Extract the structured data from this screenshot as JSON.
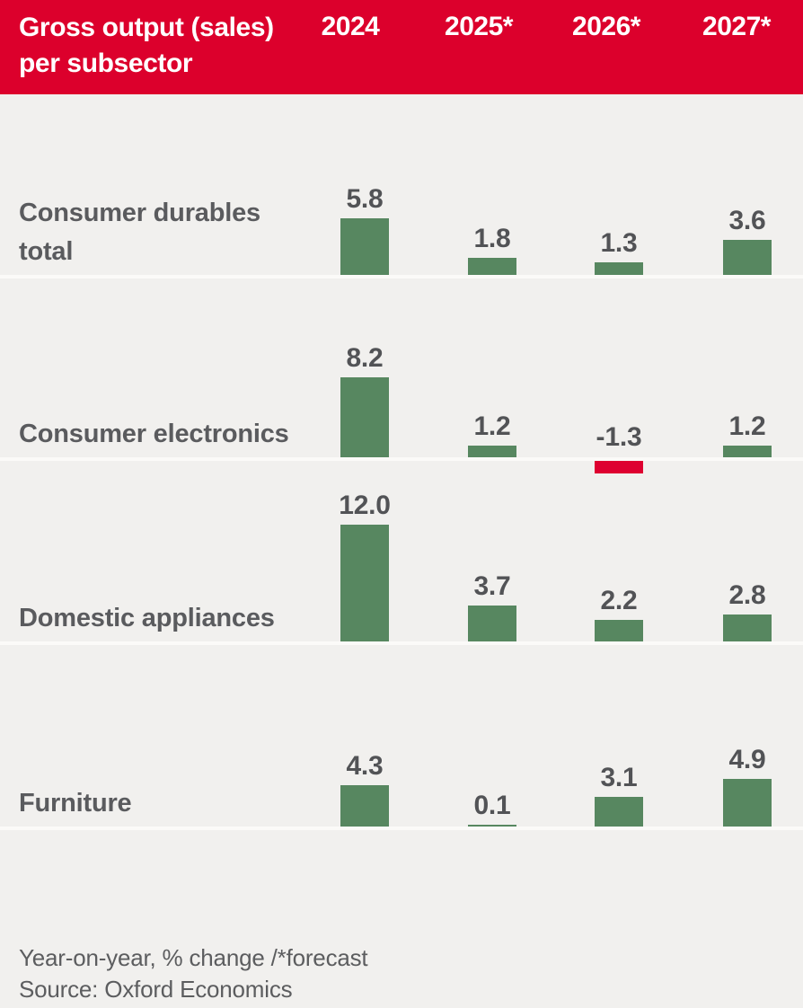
{
  "header": {
    "title_line1": "Gross output (sales)",
    "title_line2": "per subsector",
    "columns": [
      "2024",
      "2025*",
      "2026*",
      "2027*"
    ]
  },
  "chart_data": {
    "type": "bar",
    "title": "Gross output (sales) per subsector",
    "categories": [
      "2024",
      "2025*",
      "2026*",
      "2027*"
    ],
    "series": [
      {
        "name": "Consumer durables total",
        "values": [
          5.8,
          1.8,
          1.3,
          3.6
        ]
      },
      {
        "name": "Consumer electronics",
        "values": [
          8.2,
          1.2,
          -1.3,
          1.2
        ]
      },
      {
        "name": "Domestic appliances",
        "values": [
          12.0,
          3.7,
          2.2,
          2.8
        ]
      },
      {
        "name": "Furniture",
        "values": [
          4.3,
          0.1,
          3.1,
          4.9
        ]
      }
    ],
    "value_format": "one_decimal",
    "unit": "Year-on-year, % change",
    "forecast_marker": "*",
    "grid": false,
    "legend_position": "none",
    "colors": {
      "positive_bar": "#578760",
      "negative_bar": "#de0030"
    }
  },
  "footer": {
    "note": "Year-on-year, % change /*forecast",
    "source": "Source: Oxford Economics"
  },
  "colors": {
    "header_background": "#dc002c",
    "header_text": "#ffffff",
    "body_background": "#f1f0ee",
    "separator": "#fbfaf8",
    "row_label_text": "#5a5b5e",
    "value_text": "#525356",
    "footer_text": "#5c5d5f",
    "positive_bar": "#578760",
    "negative_bar": "#de0030"
  }
}
